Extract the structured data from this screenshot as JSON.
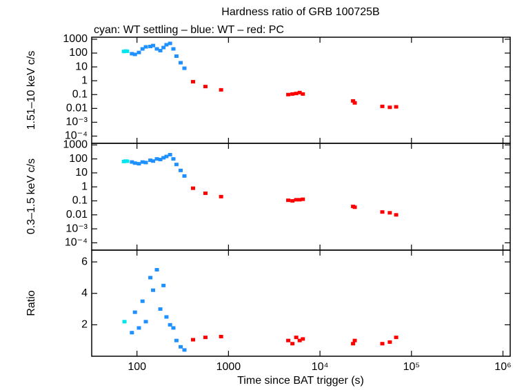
{
  "chart_data": [
    {
      "type": "scatter",
      "title": "Hardness ratio of GRB 100725B",
      "subtitle": "cyan: WT settling – blue: WT – red: PC",
      "ylabel": "1.51–10 keV c/s",
      "xscale": "log",
      "yscale": "log",
      "show_xtick_labels": false,
      "xlim": [
        32,
        1200000
      ],
      "ylim": [
        3e-05,
        1400
      ],
      "xticks": [
        100,
        1000,
        10000,
        100000,
        1000000
      ],
      "yticks": [
        1000,
        100,
        10,
        1,
        0.1,
        0.01,
        {
          "value": 0.001,
          "label": "10⁻³"
        },
        {
          "value": 0.0001,
          "label": "10⁻⁴"
        }
      ],
      "series": [
        {
          "color": "#00e5ee",
          "x": [
            72,
            75,
            78
          ],
          "values": [
            130,
            140,
            135
          ]
        },
        {
          "color": "#1e90ff",
          "x": [
            88,
            95,
            105,
            115,
            125,
            140,
            150,
            165,
            180,
            195,
            210,
            230,
            250,
            270,
            300,
            330
          ],
          "values": [
            90,
            80,
            110,
            200,
            280,
            300,
            350,
            200,
            150,
            250,
            400,
            500,
            200,
            60,
            20,
            8
          ]
        },
        {
          "color": "#ff0000",
          "x": [
            410,
            560,
            830,
            4500,
            5000,
            5500,
            6000,
            6500,
            23000,
            24000,
            48000,
            58000,
            68000
          ],
          "values": [
            0.85,
            0.38,
            0.22,
            0.1,
            0.11,
            0.12,
            0.14,
            0.11,
            0.035,
            0.025,
            0.014,
            0.012,
            0.013
          ]
        }
      ]
    },
    {
      "type": "scatter",
      "ylabel": "0.3–1.5 keV c/s",
      "xscale": "log",
      "yscale": "log",
      "show_xtick_labels": false,
      "xlim": [
        32,
        1200000
      ],
      "ylim": [
        3e-05,
        1300
      ],
      "xticks": [
        100,
        1000,
        10000,
        100000,
        1000000
      ],
      "yticks": [
        1000,
        100,
        10,
        1,
        0.1,
        0.01,
        {
          "value": 0.001,
          "label": "10⁻³"
        },
        {
          "value": 0.0001,
          "label": "10⁻⁴"
        }
      ],
      "series": [
        {
          "color": "#00e5ee",
          "x": [
            72,
            75,
            78
          ],
          "values": [
            65,
            70,
            68
          ]
        },
        {
          "color": "#1e90ff",
          "x": [
            88,
            95,
            105,
            115,
            125,
            140,
            150,
            165,
            180,
            195,
            210,
            230,
            250,
            270,
            300,
            330
          ],
          "values": [
            60,
            50,
            45,
            60,
            55,
            80,
            70,
            100,
            90,
            120,
            150,
            200,
            100,
            40,
            15,
            6
          ]
        },
        {
          "color": "#ff0000",
          "x": [
            410,
            560,
            830,
            4500,
            5000,
            5500,
            6000,
            6500,
            23000,
            24000,
            48000,
            58000,
            68000
          ],
          "values": [
            0.8,
            0.35,
            0.2,
            0.11,
            0.1,
            0.12,
            0.12,
            0.13,
            0.04,
            0.035,
            0.016,
            0.014,
            0.01
          ]
        }
      ]
    },
    {
      "type": "scatter",
      "ylabel": "Ratio",
      "xlabel": "Time since BAT trigger (s)",
      "xscale": "log",
      "yscale": "linear",
      "show_xtick_labels": true,
      "xlim": [
        32,
        1200000
      ],
      "ylim": [
        0,
        6.75
      ],
      "xticks": [
        100,
        1000,
        {
          "value": 10000,
          "label": "10⁴"
        },
        {
          "value": 100000,
          "label": "10⁵"
        },
        {
          "value": 1000000,
          "label": "10⁶"
        }
      ],
      "yticks": [
        2,
        4,
        6
      ],
      "series": [
        {
          "color": "#00e5ee",
          "x": [
            73
          ],
          "values": [
            2.2
          ]
        },
        {
          "color": "#1e90ff",
          "x": [
            88,
            95,
            105,
            115,
            125,
            140,
            150,
            165,
            180,
            195,
            210,
            230,
            250,
            270,
            300,
            330
          ],
          "values": [
            1.5,
            2.8,
            1.8,
            3.5,
            2.2,
            5,
            4.2,
            5.5,
            3,
            4.5,
            2.5,
            2,
            1.8,
            1,
            0.6,
            0.4
          ]
        },
        {
          "color": "#ff0000",
          "x": [
            410,
            560,
            830,
            4500,
            5000,
            5500,
            6000,
            6500,
            23000,
            24000,
            48000,
            58000,
            68000
          ],
          "values": [
            1.05,
            1.2,
            1.25,
            1.0,
            0.8,
            1.2,
            1.0,
            1.1,
            0.8,
            1.0,
            0.8,
            0.9,
            1.2
          ]
        }
      ]
    }
  ]
}
